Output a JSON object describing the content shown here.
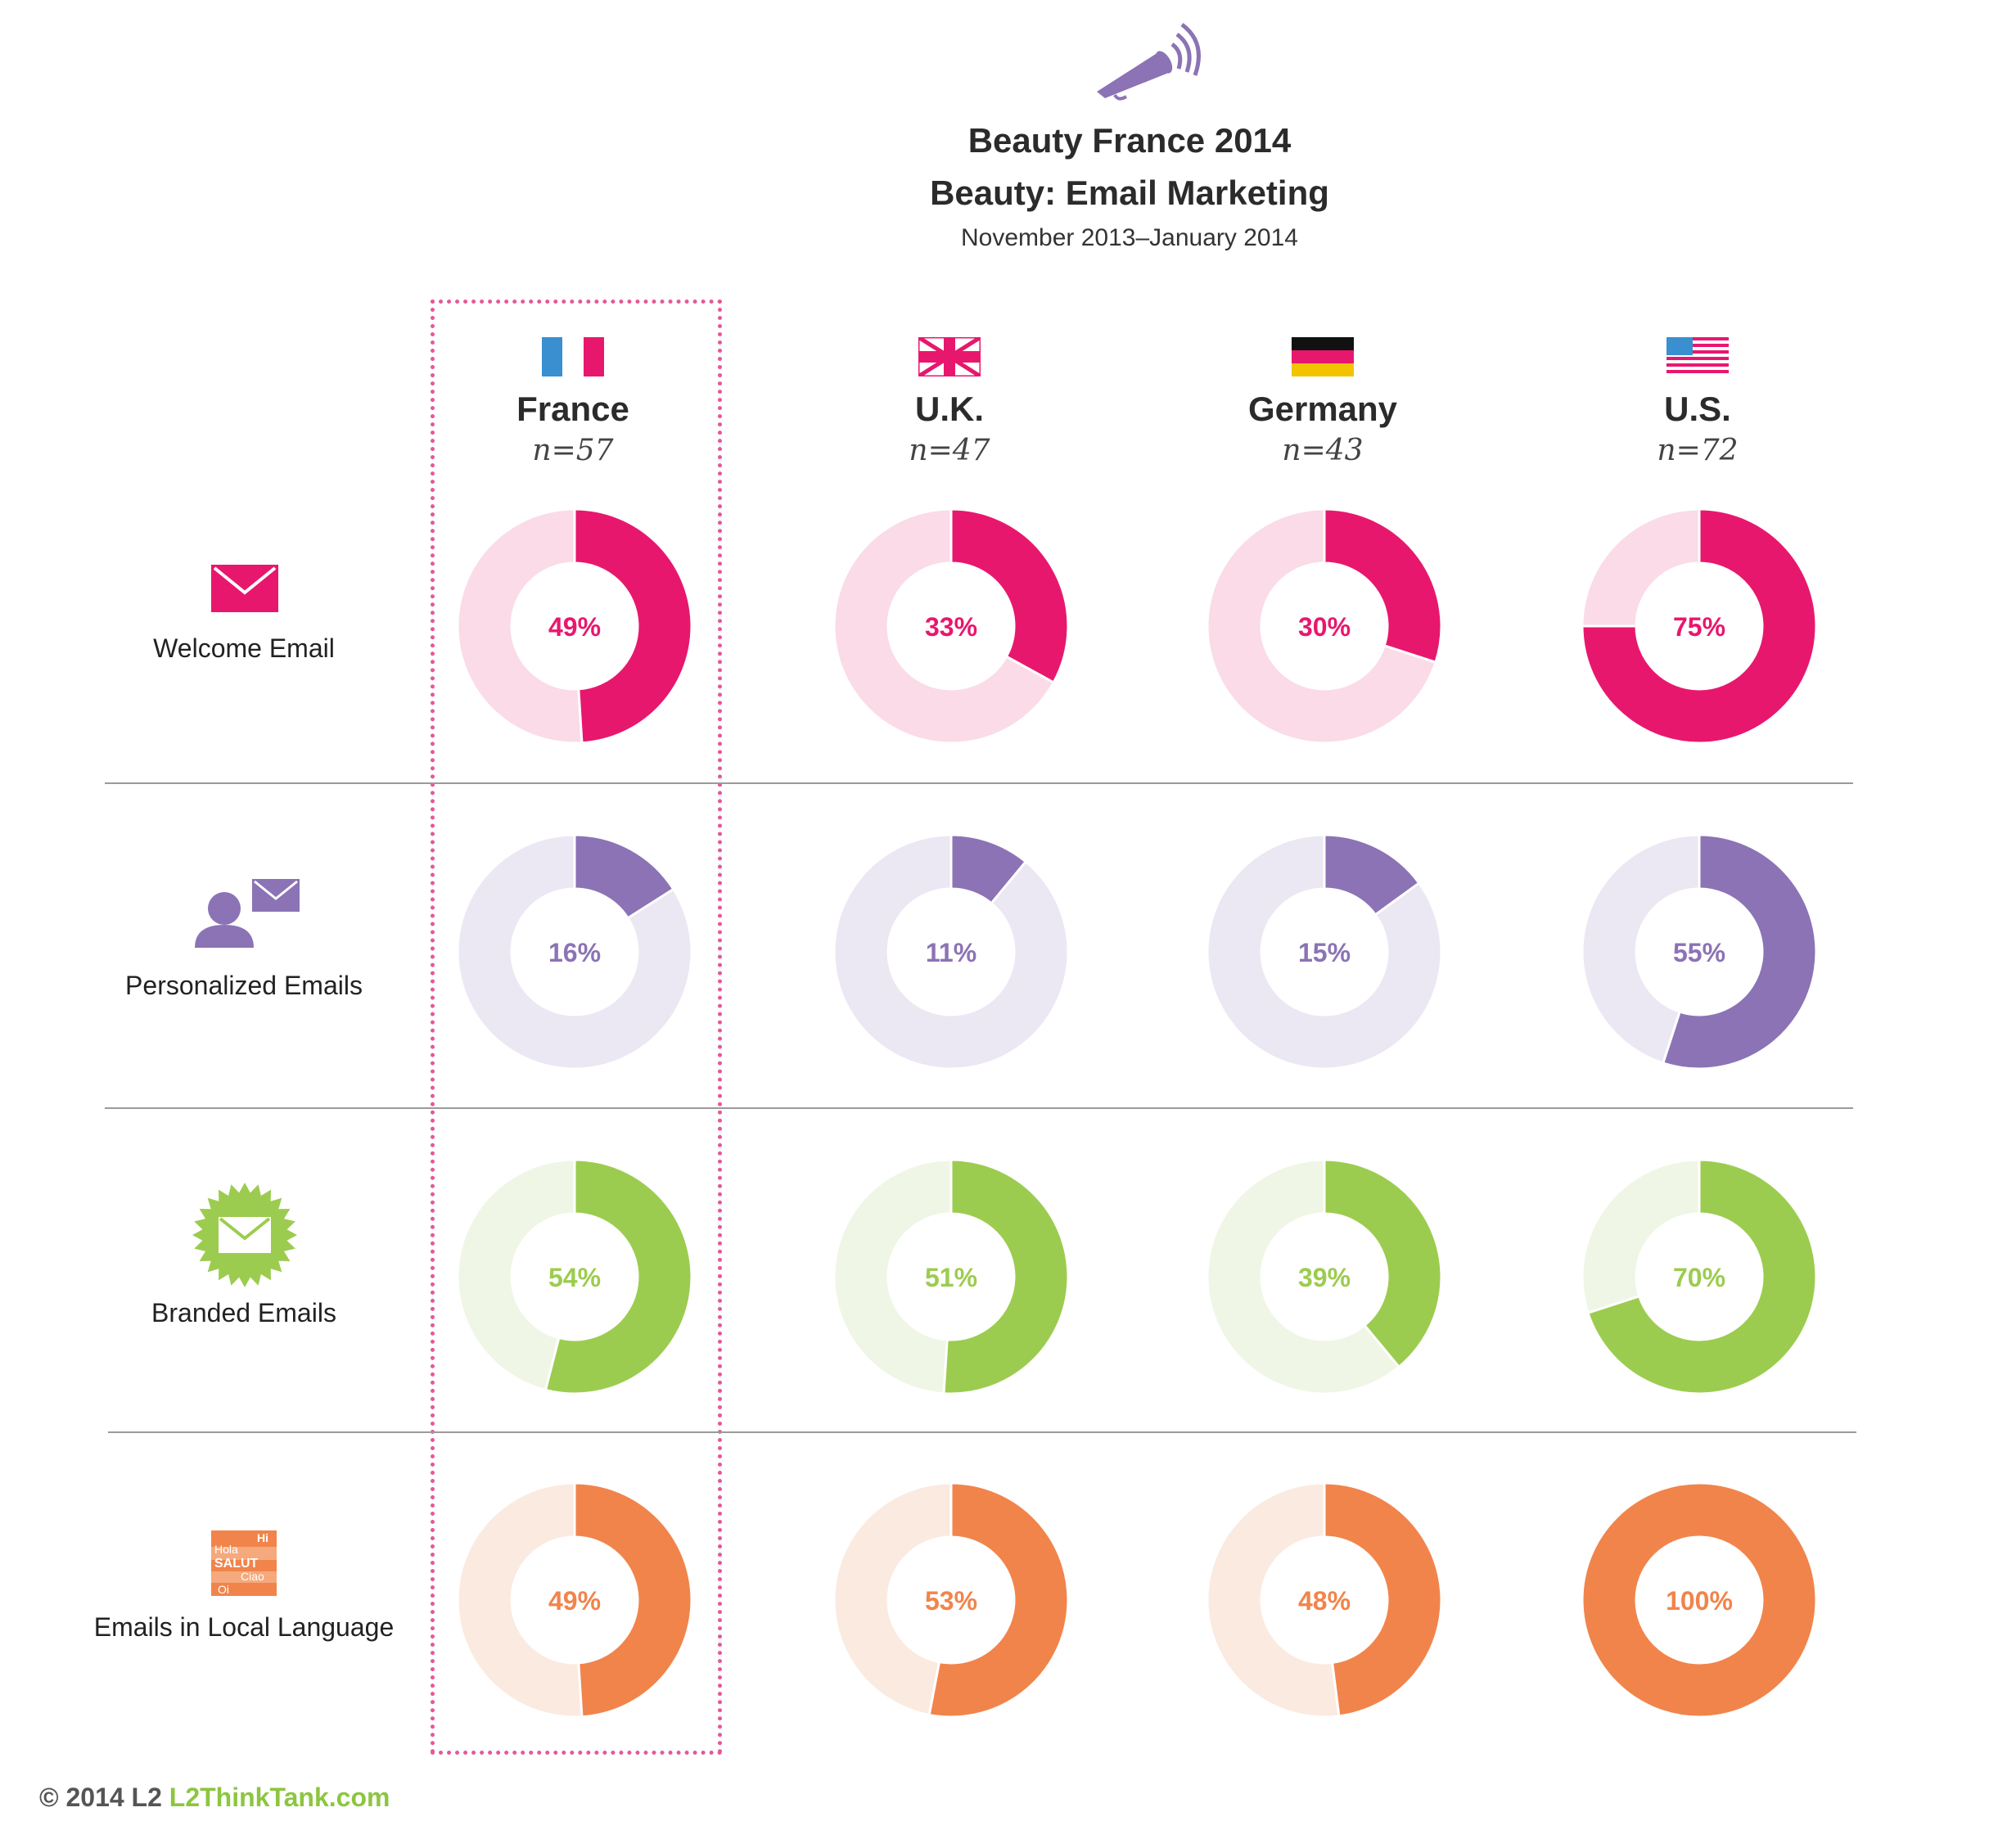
{
  "header": {
    "title": "Beauty France 2014",
    "subtitle": "Beauty: Email Marketing",
    "period": "November 2013–January 2014"
  },
  "countries": [
    {
      "name": "France",
      "sample": "n=57",
      "flag": "france-flag-icon"
    },
    {
      "name": "U.K.",
      "sample": "n=47",
      "flag": "uk-flag-icon"
    },
    {
      "name": "Germany",
      "sample": "n=43",
      "flag": "germany-flag-icon"
    },
    {
      "name": "U.S.",
      "sample": "n=72",
      "flag": "us-flag-icon"
    }
  ],
  "rows": [
    {
      "label": "Welcome Email",
      "icon": "envelope-icon",
      "color": "#e8176e",
      "light": "#fadbe7"
    },
    {
      "label": "Personalized Emails",
      "icon": "person-envelope-icon",
      "color": "#8b73b5",
      "light": "#ebe7f3"
    },
    {
      "label": "Branded Emails",
      "icon": "starburst-envelope-icon",
      "color": "#9ccc4f",
      "light": "#eff6e5"
    },
    {
      "label": "Emails in Local Language",
      "icon": "languages-icon",
      "color": "#f1844b",
      "light": "#fbeae0",
      "icon_words": [
        "Hi",
        "Hola",
        "SALUT",
        "Ciao",
        "Oi"
      ]
    }
  ],
  "chart_data": {
    "type": "pie",
    "variant": "donut-grid",
    "title": "Beauty: Email Marketing",
    "categories": [
      "France",
      "U.K.",
      "Germany",
      "U.S."
    ],
    "series": [
      {
        "name": "Welcome Email",
        "values": [
          49,
          33,
          30,
          75
        ],
        "labels": [
          "49%",
          "33%",
          "30%",
          "75%"
        ]
      },
      {
        "name": "Personalized Emails",
        "values": [
          16,
          11,
          15,
          55
        ],
        "labels": [
          "16%",
          "11%",
          "15%",
          "55%"
        ]
      },
      {
        "name": "Branded Emails",
        "values": [
          54,
          51,
          39,
          70
        ],
        "labels": [
          "54%",
          "51%",
          "39%",
          "70%"
        ]
      },
      {
        "name": "Emails in Local Language",
        "values": [
          49,
          53,
          48,
          100
        ],
        "labels": [
          "49%",
          "53%",
          "48%",
          "100%"
        ]
      }
    ],
    "highlighted_category": "France"
  },
  "footer": {
    "copyright": "© 2014 L2",
    "link": "L2ThinkTank.com"
  }
}
